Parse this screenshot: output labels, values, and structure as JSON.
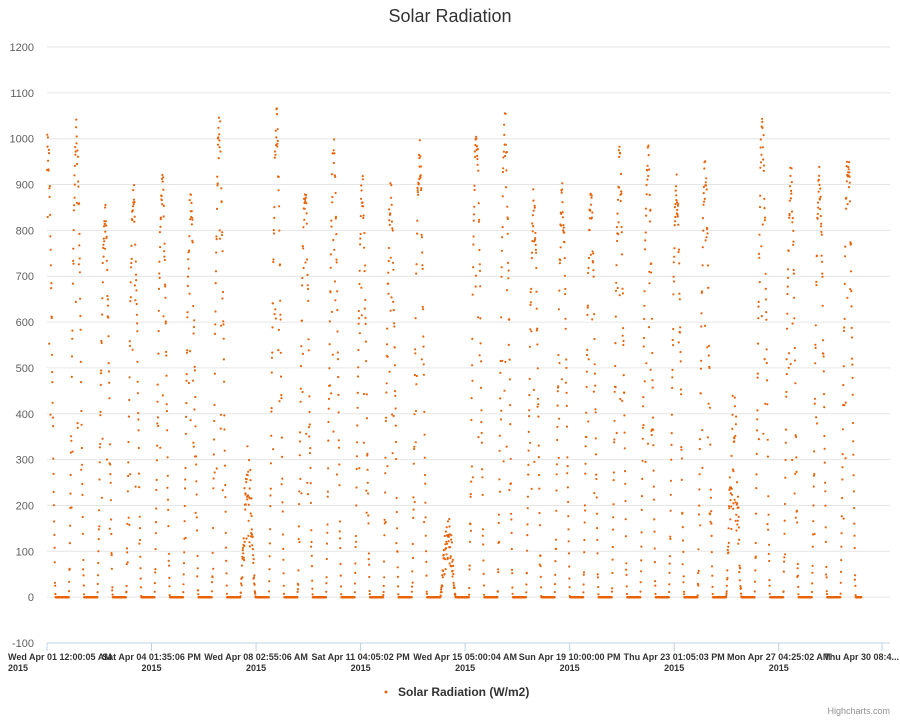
{
  "chart_data": {
    "type": "scatter",
    "title": "Solar Radiation",
    "ylim": [
      -100,
      1200
    ],
    "yticks": [
      -100,
      0,
      100,
      200,
      300,
      400,
      500,
      600,
      700,
      800,
      900,
      1000,
      1100,
      1200
    ],
    "xlim": [
      "2015-04-01T12:00:05",
      "2015-05-01T00:00:00"
    ],
    "xtick_labels": [
      {
        "line1": "Wed Apr 01 12:00:05 AM",
        "line2": "2015"
      },
      {
        "line1": "Sat Apr 04 01:35:06 PM",
        "line2": "2015"
      },
      {
        "line1": "Wed Apr 08 02:55:06 AM",
        "line2": "2015"
      },
      {
        "line1": "Sat Apr 11 04:05:02 PM",
        "line2": "2015"
      },
      {
        "line1": "Wed Apr 15 05:00:04 AM",
        "line2": "2015"
      },
      {
        "line1": "Sun Apr 19 10:00:00 PM",
        "line2": "2015"
      },
      {
        "line1": "Thu Apr 23 01:05:03 PM",
        "line2": "2015"
      },
      {
        "line1": "Mon Apr 27 04:25:02 AM",
        "line2": "2015"
      },
      {
        "line1": "Thu Apr 30 08:4...",
        "line2": ""
      }
    ],
    "grid": true,
    "legend_position": "bottom-center",
    "series": [
      {
        "name": "Solar Radiation (W/m2)",
        "color": "#e8640c",
        "daily_peaks": [
          {
            "date": "2015-04-01",
            "peak": 1000
          },
          {
            "date": "2015-04-02",
            "peak": 1040
          },
          {
            "date": "2015-04-03",
            "peak": 850
          },
          {
            "date": "2015-04-04",
            "peak": 890
          },
          {
            "date": "2015-04-05",
            "peak": 920
          },
          {
            "date": "2015-04-06",
            "peak": 890
          },
          {
            "date": "2015-04-07",
            "peak": 1050
          },
          {
            "date": "2015-04-08",
            "peak": 350
          },
          {
            "date": "2015-04-09",
            "peak": 1050
          },
          {
            "date": "2015-04-10",
            "peak": 895
          },
          {
            "date": "2015-04-11",
            "peak": 985
          },
          {
            "date": "2015-04-12",
            "peak": 910
          },
          {
            "date": "2015-04-13",
            "peak": 905
          },
          {
            "date": "2015-04-14",
            "peak": 990
          },
          {
            "date": "2015-04-15",
            "peak": 200
          },
          {
            "date": "2015-04-16",
            "peak": 1050
          },
          {
            "date": "2015-04-17",
            "peak": 1045
          },
          {
            "date": "2015-04-18",
            "peak": 880
          },
          {
            "date": "2015-04-19",
            "peak": 890
          },
          {
            "date": "2015-04-20",
            "peak": 885
          },
          {
            "date": "2015-04-21",
            "peak": 975
          },
          {
            "date": "2015-04-22",
            "peak": 1000
          },
          {
            "date": "2015-04-23",
            "peak": 910
          },
          {
            "date": "2015-04-24",
            "peak": 945
          },
          {
            "date": "2015-04-25",
            "peak": 470
          },
          {
            "date": "2015-04-26",
            "peak": 1050
          },
          {
            "date": "2015-04-27",
            "peak": 940
          },
          {
            "date": "2015-04-28",
            "peak": 930
          },
          {
            "date": "2015-04-29",
            "peak": 990
          }
        ]
      }
    ]
  },
  "credits": "Highcharts.com"
}
